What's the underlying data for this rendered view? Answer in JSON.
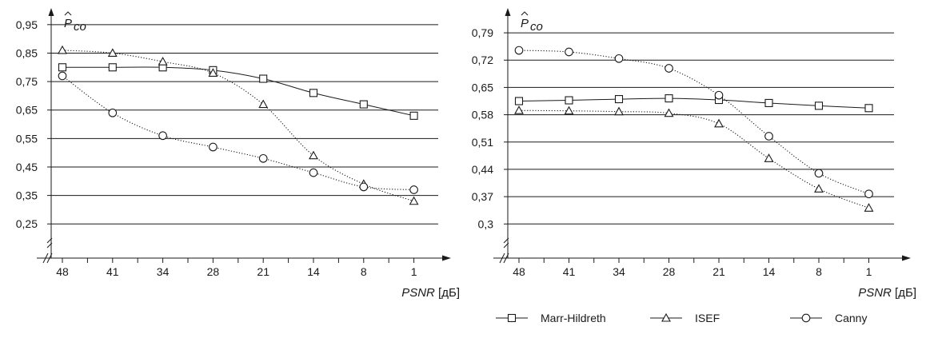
{
  "chart_data": [
    {
      "type": "line",
      "categories": [
        "48",
        "41",
        "34",
        "28",
        "21",
        "14",
        "8",
        "1"
      ],
      "yticks": [
        "0,25",
        "0,35",
        "0,45",
        "0,55",
        "0,65",
        "0,75",
        "0,85",
        "0,95"
      ],
      "ylim": [
        0.13,
        1.0
      ],
      "ylabel_main": "P",
      "ylabel_sub": "co",
      "xlabel_main": "PSNR",
      "xlabel_unit": " [дБ]",
      "grid": true,
      "series": [
        {
          "name": "Marr-Hildreth",
          "marker": "square",
          "line": "solid",
          "values": [
            0.8,
            0.8,
            0.8,
            0.79,
            0.76,
            0.71,
            0.67,
            0.63
          ]
        },
        {
          "name": "ISEF",
          "marker": "triangle",
          "line": "dotted",
          "values": [
            0.86,
            0.85,
            0.82,
            0.78,
            0.67,
            0.49,
            0.39,
            0.33
          ]
        },
        {
          "name": "Canny",
          "marker": "circle",
          "line": "dotted",
          "values": [
            0.77,
            0.64,
            0.56,
            0.52,
            0.48,
            0.43,
            0.38,
            0.37
          ]
        }
      ]
    },
    {
      "type": "line",
      "categories": [
        "48",
        "41",
        "34",
        "28",
        "21",
        "14",
        "8",
        "1"
      ],
      "yticks": [
        "0,3",
        "0,37",
        "0,44",
        "0,51",
        "0,58",
        "0,65",
        "0,72",
        "0,79"
      ],
      "ylim": [
        0.2125,
        0.8475
      ],
      "ylabel_main": "P",
      "ylabel_sub": "co",
      "xlabel_main": "PSNR",
      "xlabel_unit": " [дБ]",
      "grid": true,
      "series": [
        {
          "name": "Marr-Hildreth",
          "marker": "square",
          "line": "solid",
          "values": [
            0.615,
            0.617,
            0.62,
            0.622,
            0.618,
            0.61,
            0.603,
            0.597
          ]
        },
        {
          "name": "ISEF",
          "marker": "triangle",
          "line": "dotted",
          "values": [
            0.591,
            0.59,
            0.588,
            0.584,
            0.557,
            0.468,
            0.39,
            0.341
          ]
        },
        {
          "name": "Canny",
          "marker": "circle",
          "line": "dotted",
          "values": [
            0.745,
            0.741,
            0.724,
            0.699,
            0.63,
            0.525,
            0.43,
            0.377
          ]
        }
      ]
    }
  ],
  "legend": {
    "position": "bottom-right",
    "items": [
      {
        "label": "Marr-Hildreth",
        "marker": "square"
      },
      {
        "label": "ISEF",
        "marker": "triangle"
      },
      {
        "label": "Canny",
        "marker": "circle"
      }
    ]
  }
}
